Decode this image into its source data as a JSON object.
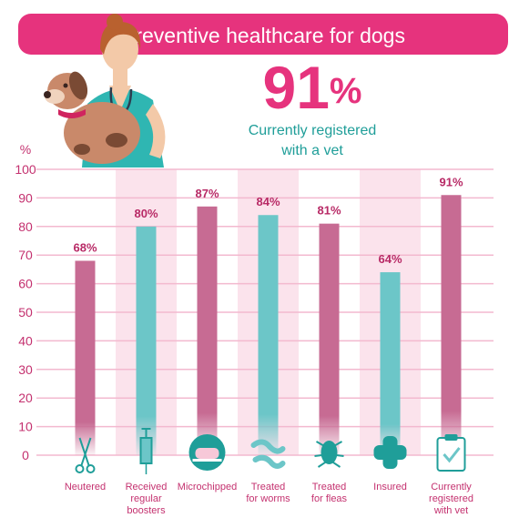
{
  "title": "Preventive healthcare for dogs",
  "headline": {
    "value": "91",
    "unit": "%",
    "caption": "Currently registered\nwith a vet"
  },
  "colors": {
    "accent": "#e6337d",
    "pink_bar": "#c76b93",
    "teal_bar": "#6cc6c8",
    "teal_dark": "#1f9e99",
    "band": "#fbe3ec",
    "grid": "#f3b9cf",
    "axis_text": "#c4316f",
    "label_text": "#b82a66",
    "category_text": "#c4316f"
  },
  "icons": [
    "scissors-icon",
    "syringe-icon",
    "microchip-icon",
    "worms-icon",
    "flea-icon",
    "plaster-icon",
    "clipboard-icon"
  ],
  "chart_data": {
    "type": "bar",
    "ylabel": "%",
    "ylim": [
      0,
      100
    ],
    "yticks": [
      0,
      10,
      20,
      30,
      40,
      50,
      60,
      70,
      80,
      90,
      100
    ],
    "grid": true,
    "categories": [
      "Neutered",
      "Received\nregular\nboosters",
      "Microchipped",
      "Treated\nfor worms",
      "Treated\nfor fleas",
      "Insured",
      "Currently\nregistered\nwith vet"
    ],
    "values": [
      68,
      80,
      87,
      84,
      81,
      64,
      91
    ],
    "value_labels": [
      "68%",
      "80%",
      "87%",
      "84%",
      "81%",
      "64%",
      "91%"
    ],
    "bar_colors": [
      "#c76b93",
      "#6cc6c8",
      "#c76b93",
      "#6cc6c8",
      "#c76b93",
      "#6cc6c8",
      "#c76b93"
    ]
  }
}
